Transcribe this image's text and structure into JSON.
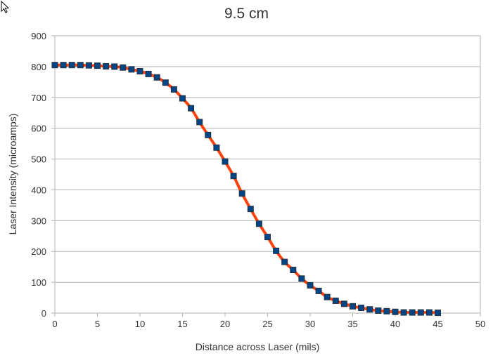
{
  "chart_data": {
    "type": "scatter",
    "title": "9.5 cm",
    "xlabel": "Distance across Laser (mils)",
    "ylabel": "Laser Intensity (microamps)",
    "xlim": [
      0,
      50
    ],
    "ylim": [
      0,
      900
    ],
    "xticks": [
      0,
      5,
      10,
      15,
      20,
      25,
      30,
      35,
      40,
      45,
      50
    ],
    "yticks": [
      0,
      100,
      200,
      300,
      400,
      500,
      600,
      700,
      800,
      900
    ],
    "grid": "horizontal",
    "legend": "none",
    "series": [
      {
        "x": [
          0,
          1,
          2,
          3,
          4,
          5,
          6,
          7,
          8,
          9,
          10,
          11,
          12,
          13,
          14,
          15,
          16,
          17,
          18,
          19,
          20,
          21,
          22,
          23,
          24,
          25,
          26,
          27,
          28,
          29,
          30,
          31,
          32,
          33,
          34,
          35,
          36,
          37,
          38,
          39,
          40,
          41,
          42,
          43,
          44,
          45
        ],
        "values": [
          805,
          805,
          805,
          805,
          804,
          803,
          801,
          800,
          797,
          791,
          785,
          776,
          765,
          748,
          726,
          697,
          665,
          620,
          578,
          537,
          492,
          445,
          388,
          338,
          290,
          247,
          202,
          166,
          140,
          112,
          90,
          72,
          52,
          40,
          30,
          22,
          17,
          12,
          8,
          6,
          4,
          2,
          2,
          2,
          2,
          1
        ],
        "marker_color": "#004586",
        "line_color": "#ff420e",
        "line": "smooth fit"
      }
    ]
  }
}
